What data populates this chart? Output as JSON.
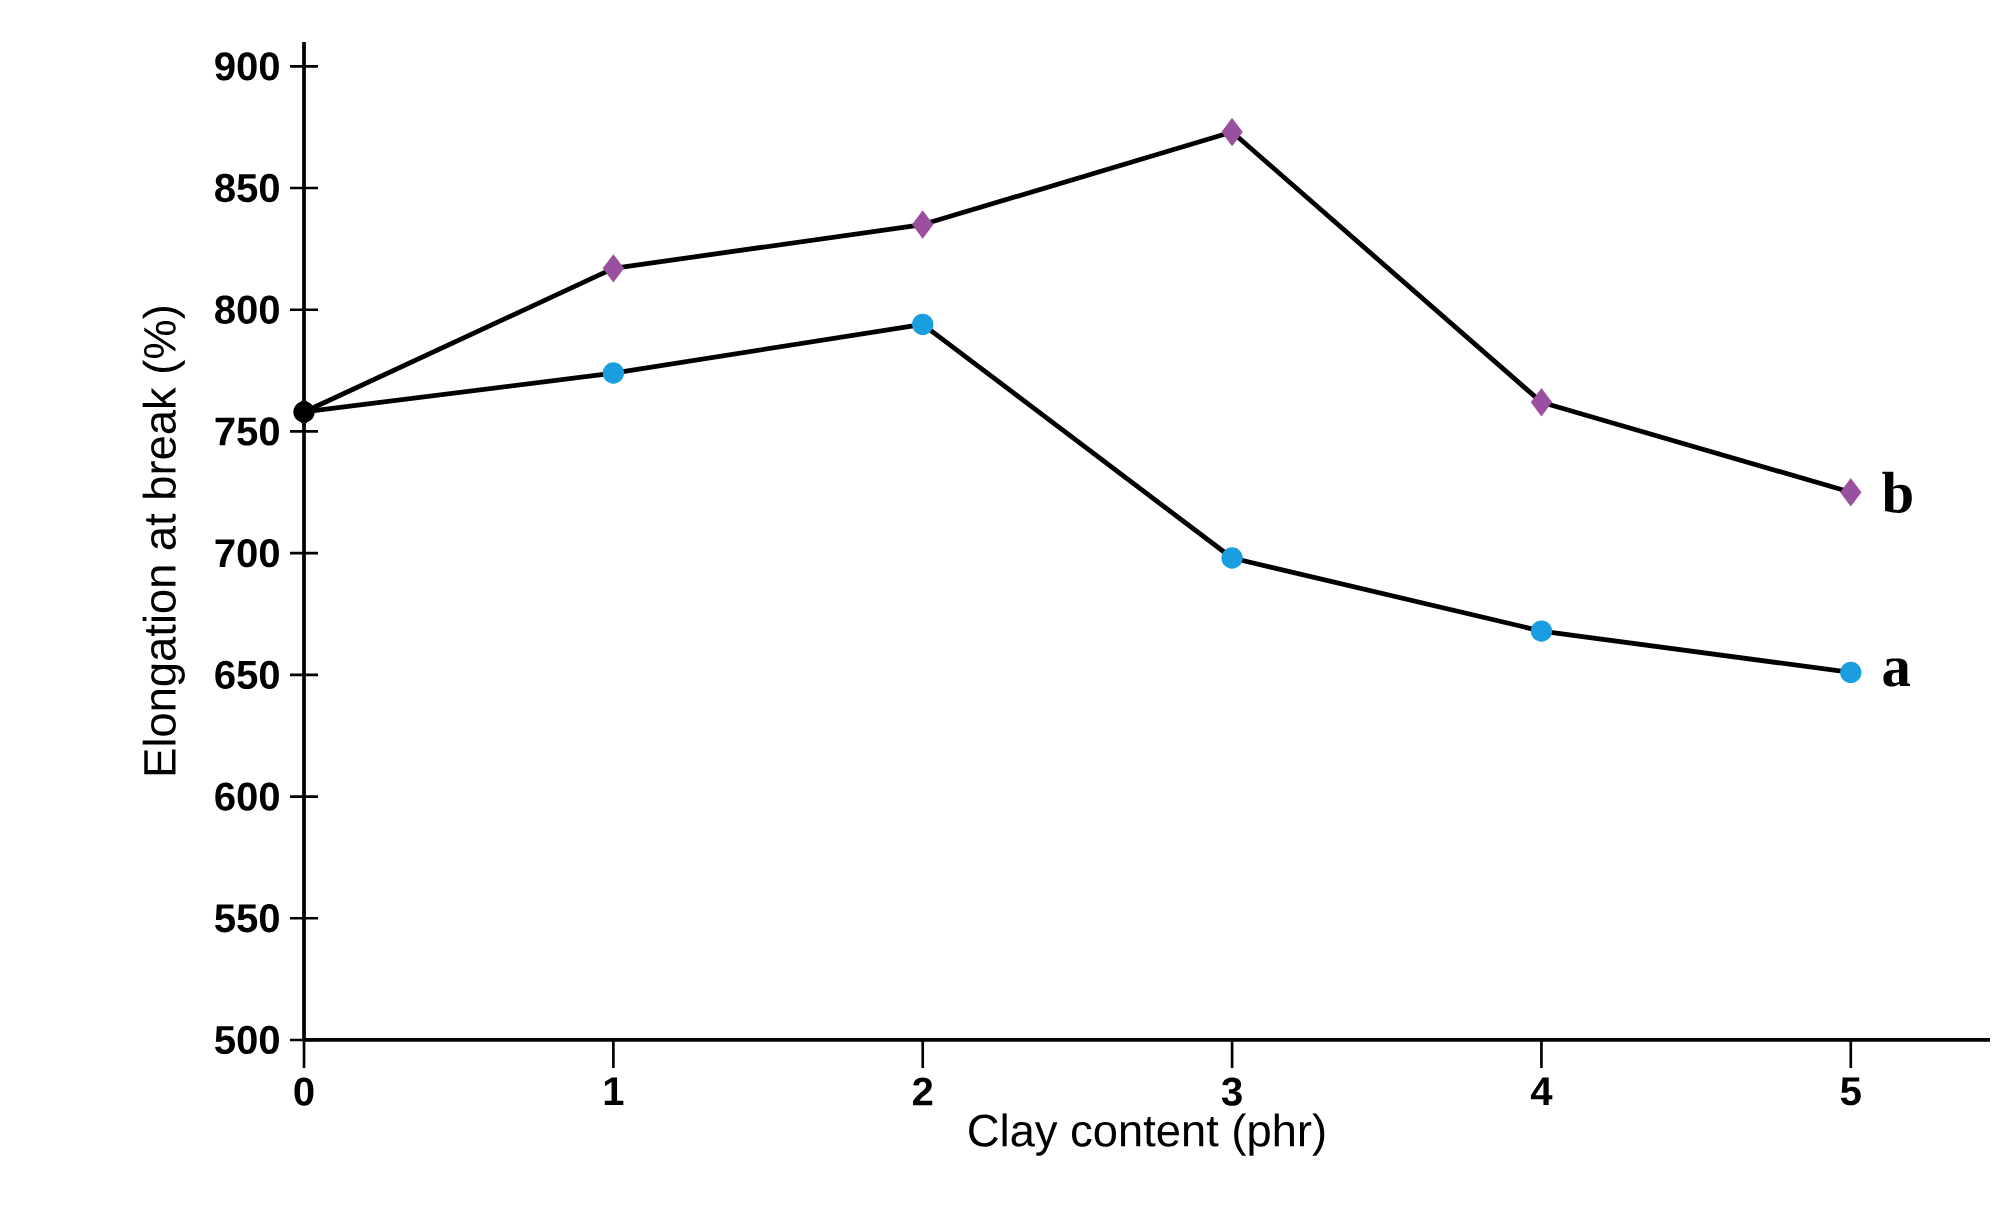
{
  "chart_data": {
    "type": "line",
    "xlabel": "Clay content (phr)",
    "ylabel": "Elongation at break (%)",
    "x": [
      0,
      1,
      2,
      3,
      4,
      5
    ],
    "series": [
      {
        "colors": [
          "#000000",
          "#1a9ee0",
          "#1a9ee0",
          "#1a9ee0",
          "#1a9ee0",
          "#1a9ee0"
        ],
        "marker": "circle",
        "values": [
          758,
          774,
          794,
          698,
          668,
          651
        ]
      },
      {
        "colors": [
          "#000000",
          "#9b4f9f",
          "#9b4f9f",
          "#9b4f9f",
          "#9b4f9f",
          "#9b4f9f"
        ],
        "marker": "diamond",
        "values": [
          758,
          817,
          835,
          873,
          762,
          725
        ]
      }
    ],
    "xlim": [
      0,
      5.45
    ],
    "ylim": [
      500,
      910
    ],
    "xticks": [
      0,
      1,
      2,
      3,
      4,
      5
    ],
    "yticks": [
      500,
      550,
      600,
      650,
      700,
      750,
      800,
      850,
      900
    ],
    "grid": false,
    "line_style": "solid",
    "annotations": [
      {
        "text": "a",
        "x": 5,
        "y": 651
      },
      {
        "text": "b",
        "x": 5,
        "y": 725
      }
    ]
  }
}
